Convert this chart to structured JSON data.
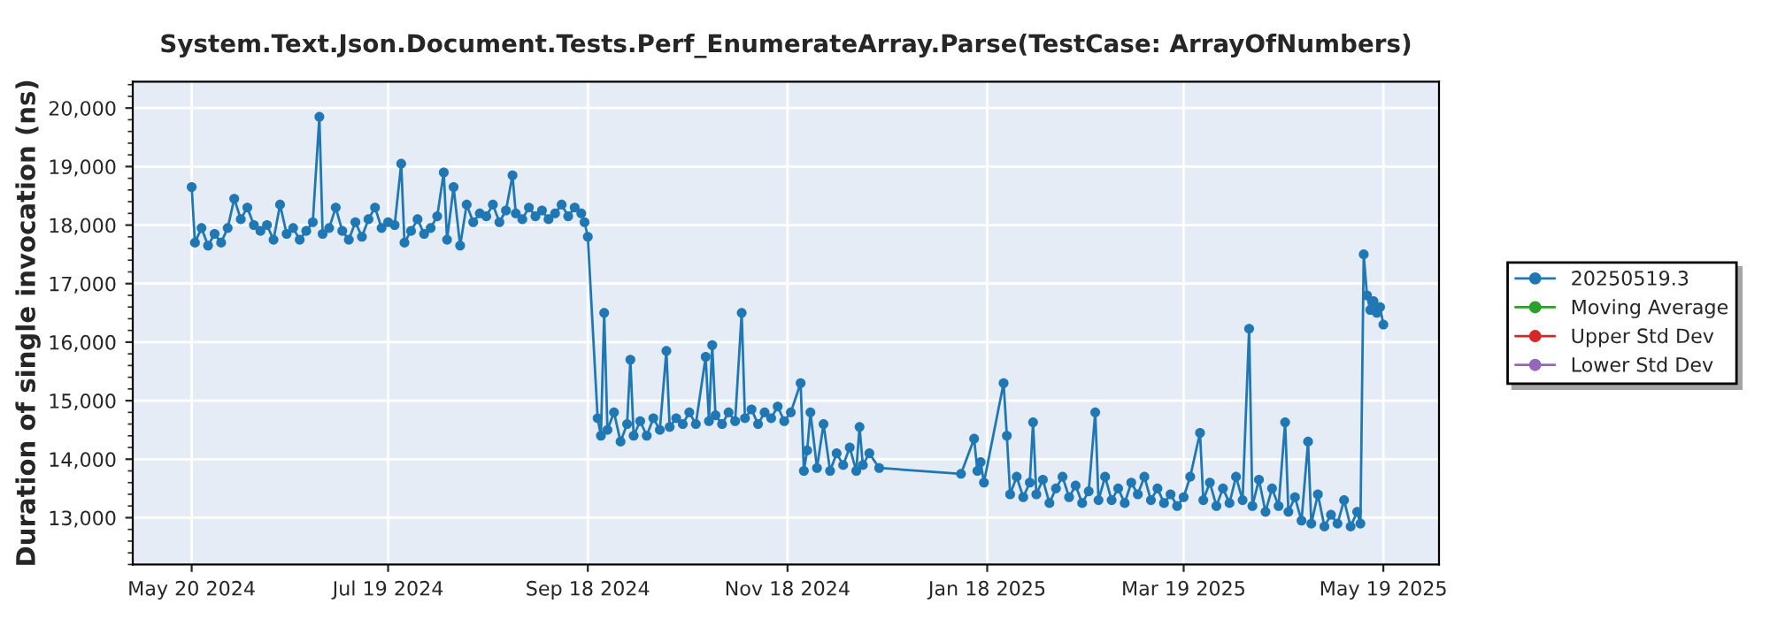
{
  "chart_data": {
    "type": "line",
    "title": "System.Text.Json.Document.Tests.Perf_EnumerateArray.Parse(TestCase: ArrayOfNumbers)",
    "ylabel": "Duration of single invocation (ns)",
    "marker": "circle",
    "line_style": "solid",
    "grid": true,
    "legend": "right",
    "xlim": [
      "2024-05-02",
      "2025-06-05"
    ],
    "xticks": [
      {
        "value": "2024-05-20",
        "label": "May 20 2024"
      },
      {
        "value": "2024-07-19",
        "label": "Jul 19 2024"
      },
      {
        "value": "2024-09-18",
        "label": "Sep 18 2024"
      },
      {
        "value": "2024-11-18",
        "label": "Nov 18 2024"
      },
      {
        "value": "2025-01-18",
        "label": "Jan 18 2025"
      },
      {
        "value": "2025-03-19",
        "label": "Mar 19 2025"
      },
      {
        "value": "2025-05-19",
        "label": "May 19 2025"
      }
    ],
    "ylim": [
      12200,
      20450
    ],
    "yticks": [
      {
        "value": 13000,
        "label": "13,000"
      },
      {
        "value": 14000,
        "label": "14,000"
      },
      {
        "value": 15000,
        "label": "15,000"
      },
      {
        "value": 16000,
        "label": "16,000"
      },
      {
        "value": 17000,
        "label": "17,000"
      },
      {
        "value": 18000,
        "label": "18,000"
      },
      {
        "value": 19000,
        "label": "19,000"
      },
      {
        "value": 20000,
        "label": "20,000"
      }
    ],
    "series": [
      {
        "name": "20250519.3",
        "color": "#1f77b4",
        "x": [
          "2024-05-20",
          "2024-05-21",
          "2024-05-23",
          "2024-05-25",
          "2024-05-27",
          "2024-05-29",
          "2024-05-31",
          "2024-06-02",
          "2024-06-04",
          "2024-06-06",
          "2024-06-08",
          "2024-06-10",
          "2024-06-12",
          "2024-06-14",
          "2024-06-16",
          "2024-06-18",
          "2024-06-20",
          "2024-06-22",
          "2024-06-24",
          "2024-06-26",
          "2024-06-28",
          "2024-06-29",
          "2024-07-01",
          "2024-07-03",
          "2024-07-05",
          "2024-07-07",
          "2024-07-09",
          "2024-07-11",
          "2024-07-13",
          "2024-07-15",
          "2024-07-17",
          "2024-07-19",
          "2024-07-21",
          "2024-07-23",
          "2024-07-24",
          "2024-07-26",
          "2024-07-28",
          "2024-07-30",
          "2024-08-01",
          "2024-08-03",
          "2024-08-05",
          "2024-08-06",
          "2024-08-08",
          "2024-08-10",
          "2024-08-12",
          "2024-08-14",
          "2024-08-16",
          "2024-08-18",
          "2024-08-20",
          "2024-08-22",
          "2024-08-24",
          "2024-08-26",
          "2024-08-27",
          "2024-08-29",
          "2024-08-31",
          "2024-09-02",
          "2024-09-04",
          "2024-09-06",
          "2024-09-08",
          "2024-09-10",
          "2024-09-12",
          "2024-09-14",
          "2024-09-16",
          "2024-09-17",
          "2024-09-18",
          "2024-09-21",
          "2024-09-22",
          "2024-09-23",
          "2024-09-24",
          "2024-09-26",
          "2024-09-28",
          "2024-09-30",
          "2024-10-01",
          "2024-10-02",
          "2024-10-04",
          "2024-10-06",
          "2024-10-08",
          "2024-10-10",
          "2024-10-12",
          "2024-10-13",
          "2024-10-15",
          "2024-10-17",
          "2024-10-19",
          "2024-10-21",
          "2024-10-24",
          "2024-10-25",
          "2024-10-26",
          "2024-10-27",
          "2024-10-29",
          "2024-10-31",
          "2024-11-02",
          "2024-11-04",
          "2024-11-05",
          "2024-11-07",
          "2024-11-09",
          "2024-11-11",
          "2024-11-13",
          "2024-11-15",
          "2024-11-17",
          "2024-11-19",
          "2024-11-22",
          "2024-11-23",
          "2024-11-24",
          "2024-11-25",
          "2024-11-27",
          "2024-11-29",
          "2024-12-01",
          "2024-12-03",
          "2024-12-05",
          "2024-12-07",
          "2024-12-09",
          "2024-12-10",
          "2024-12-11",
          "2024-12-13",
          "2024-12-16",
          "2025-01-10",
          "2025-01-14",
          "2025-01-15",
          "2025-01-16",
          "2025-01-17",
          "2025-01-23",
          "2025-01-24",
          "2025-01-25",
          "2025-01-27",
          "2025-01-29",
          "2025-01-31",
          "2025-02-01",
          "2025-02-02",
          "2025-02-04",
          "2025-02-06",
          "2025-02-08",
          "2025-02-10",
          "2025-02-12",
          "2025-02-14",
          "2025-02-16",
          "2025-02-18",
          "2025-02-20",
          "2025-02-21",
          "2025-02-23",
          "2025-02-25",
          "2025-02-27",
          "2025-03-01",
          "2025-03-03",
          "2025-03-05",
          "2025-03-07",
          "2025-03-09",
          "2025-03-11",
          "2025-03-13",
          "2025-03-15",
          "2025-03-17",
          "2025-03-19",
          "2025-03-21",
          "2025-03-24",
          "2025-03-25",
          "2025-03-27",
          "2025-03-29",
          "2025-03-31",
          "2025-04-02",
          "2025-04-04",
          "2025-04-06",
          "2025-04-08",
          "2025-04-09",
          "2025-04-11",
          "2025-04-13",
          "2025-04-15",
          "2025-04-17",
          "2025-04-19",
          "2025-04-20",
          "2025-04-22",
          "2025-04-24",
          "2025-04-26",
          "2025-04-27",
          "2025-04-29",
          "2025-05-01",
          "2025-05-03",
          "2025-05-05",
          "2025-05-07",
          "2025-05-09",
          "2025-05-11",
          "2025-05-12",
          "2025-05-13",
          "2025-05-14",
          "2025-05-15",
          "2025-05-16",
          "2025-05-17",
          "2025-05-18",
          "2025-05-19"
        ],
        "values": [
          18650,
          17700,
          17950,
          17650,
          17850,
          17700,
          17950,
          18450,
          18100,
          18300,
          18000,
          17900,
          18000,
          17750,
          18350,
          17850,
          17950,
          17750,
          17900,
          18050,
          19850,
          17850,
          17950,
          18300,
          17900,
          17750,
          18050,
          17800,
          18100,
          18300,
          17950,
          18050,
          18000,
          19050,
          17700,
          17900,
          18100,
          17850,
          17950,
          18150,
          18900,
          17750,
          18650,
          17650,
          18350,
          18050,
          18200,
          18150,
          18350,
          18050,
          18250,
          18850,
          18200,
          18100,
          18300,
          18150,
          18250,
          18100,
          18200,
          18350,
          18150,
          18300,
          18200,
          18050,
          17800,
          14700,
          14400,
          16500,
          14500,
          14800,
          14300,
          14600,
          15700,
          14400,
          14650,
          14400,
          14700,
          14500,
          15850,
          14550,
          14700,
          14600,
          14800,
          14600,
          15750,
          14650,
          15950,
          14750,
          14600,
          14800,
          14650,
          16500,
          14700,
          14850,
          14600,
          14800,
          14700,
          14900,
          14650,
          14800,
          15300,
          13800,
          14150,
          14800,
          13850,
          14600,
          13800,
          14100,
          13900,
          14200,
          13800,
          14550,
          13900,
          14100,
          13850,
          13750,
          14350,
          13800,
          13950,
          13600,
          15300,
          14400,
          13400,
          13700,
          13350,
          13600,
          14630,
          13400,
          13650,
          13250,
          13500,
          13700,
          13350,
          13550,
          13250,
          13450,
          14800,
          13300,
          13700,
          13300,
          13500,
          13250,
          13600,
          13400,
          13700,
          13300,
          13500,
          13250,
          13400,
          13200,
          13350,
          13700,
          14450,
          13300,
          13600,
          13200,
          13500,
          13250,
          13700,
          13300,
          16230,
          13200,
          13650,
          13100,
          13500,
          13200,
          14630,
          13100,
          13350,
          12950,
          14300,
          12900,
          13400,
          12850,
          13050,
          12900,
          13300,
          12850,
          13100,
          12900,
          17500,
          16800,
          16550,
          16700,
          16500,
          16600,
          16300
        ]
      },
      {
        "name": "Moving Average",
        "color": "#2ca02c"
      },
      {
        "name": "Upper Std Dev",
        "color": "#d62728"
      },
      {
        "name": "Lower Std Dev",
        "color": "#9467bd"
      }
    ]
  }
}
